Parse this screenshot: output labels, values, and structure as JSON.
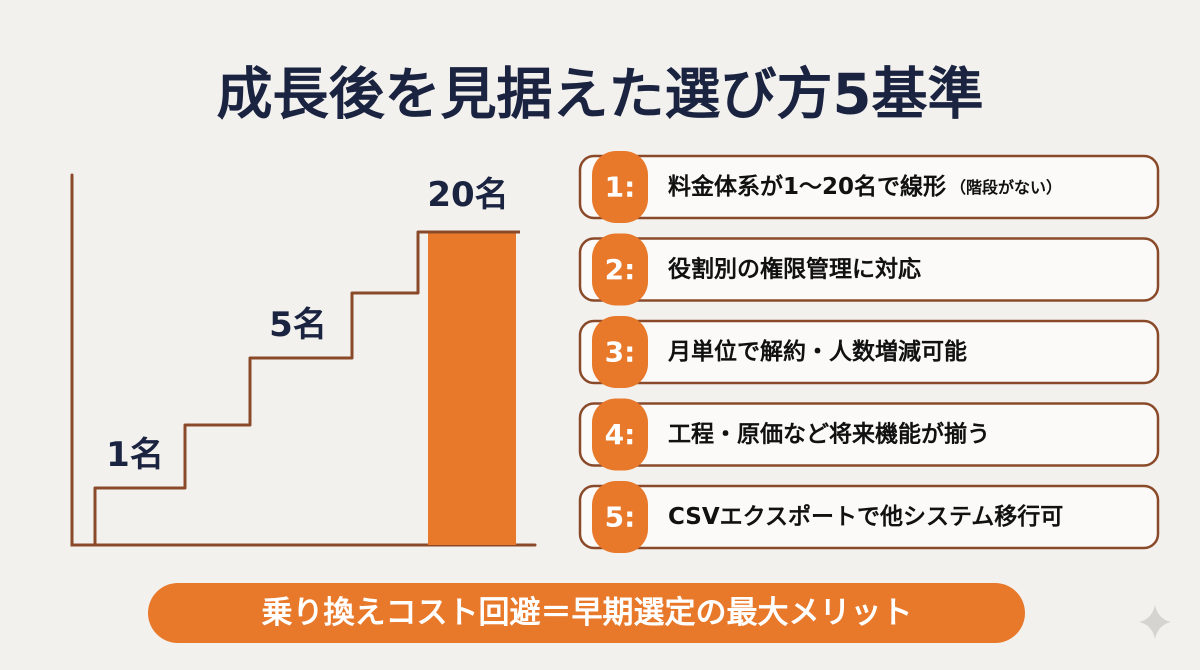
{
  "title": "成長後を見据えた選び方5基準",
  "staircase": {
    "labels": [
      "1名",
      "5名",
      "20名"
    ]
  },
  "criteria": [
    {
      "number": "1:",
      "text": "料金体系が1〜20名で線形",
      "note": "（階段がない）"
    },
    {
      "number": "2:",
      "text": "役割別の権限管理に対応"
    },
    {
      "number": "3:",
      "text": "月単位で解約・人数増減可能"
    },
    {
      "number": "4:",
      "text": "工程・原価など将来機能が揃う"
    },
    {
      "number": "5:",
      "text": "CSVエクスポートで他システム移行可"
    }
  ],
  "footer": "乗り換えコスト回避＝早期選定の最大メリット"
}
